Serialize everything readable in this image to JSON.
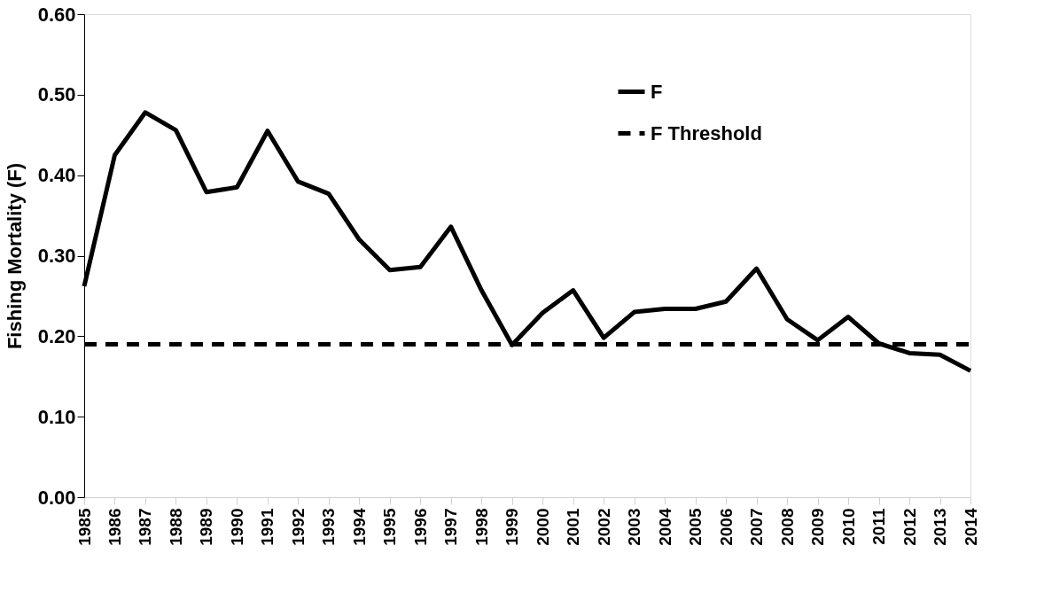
{
  "chart_data": {
    "type": "line",
    "ylabel": "Fishing Mortality (F)",
    "categories": [
      "1985",
      "1986",
      "1987",
      "1988",
      "1989",
      "1990",
      "1991",
      "1992",
      "1993",
      "1994",
      "1995",
      "1996",
      "1997",
      "1998",
      "1999",
      "2000",
      "2001",
      "2002",
      "2003",
      "2004",
      "2005",
      "2006",
      "2007",
      "2008",
      "2009",
      "2010",
      "2011",
      "2012",
      "2013",
      "2014"
    ],
    "series": [
      {
        "name": "F",
        "color": "#000000",
        "line_style": "solid",
        "values": [
          0.262,
          0.425,
          0.478,
          0.456,
          0.379,
          0.385,
          0.455,
          0.392,
          0.377,
          0.32,
          0.282,
          0.286,
          0.336,
          0.257,
          0.189,
          0.229,
          0.257,
          0.198,
          0.23,
          0.234,
          0.234,
          0.243,
          0.284,
          0.221,
          0.195,
          0.224,
          0.191,
          0.179,
          0.177,
          0.157
        ]
      },
      {
        "name": "F Threshold",
        "color": "#000000",
        "line_style": "dashed",
        "values": [
          0.19,
          0.19,
          0.19,
          0.19,
          0.19,
          0.19,
          0.19,
          0.19,
          0.19,
          0.19,
          0.19,
          0.19,
          0.19,
          0.19,
          0.19,
          0.19,
          0.19,
          0.19,
          0.19,
          0.19,
          0.19,
          0.19,
          0.19,
          0.19,
          0.19,
          0.19,
          0.19,
          0.19,
          0.19,
          0.19
        ]
      }
    ],
    "ylim": [
      0,
      0.6
    ],
    "yticks": [
      {
        "value": 0,
        "label": "0.00"
      },
      {
        "value": 0.1,
        "label": "0.10"
      },
      {
        "value": 0.2,
        "label": "0.20"
      },
      {
        "value": 0.3,
        "label": "0.30"
      },
      {
        "value": 0.4,
        "label": "0.40"
      },
      {
        "value": 0.5,
        "label": "0.50"
      },
      {
        "value": 0.6,
        "label": "0.60"
      }
    ],
    "grid": false,
    "legend": "top right",
    "marker": "none"
  }
}
